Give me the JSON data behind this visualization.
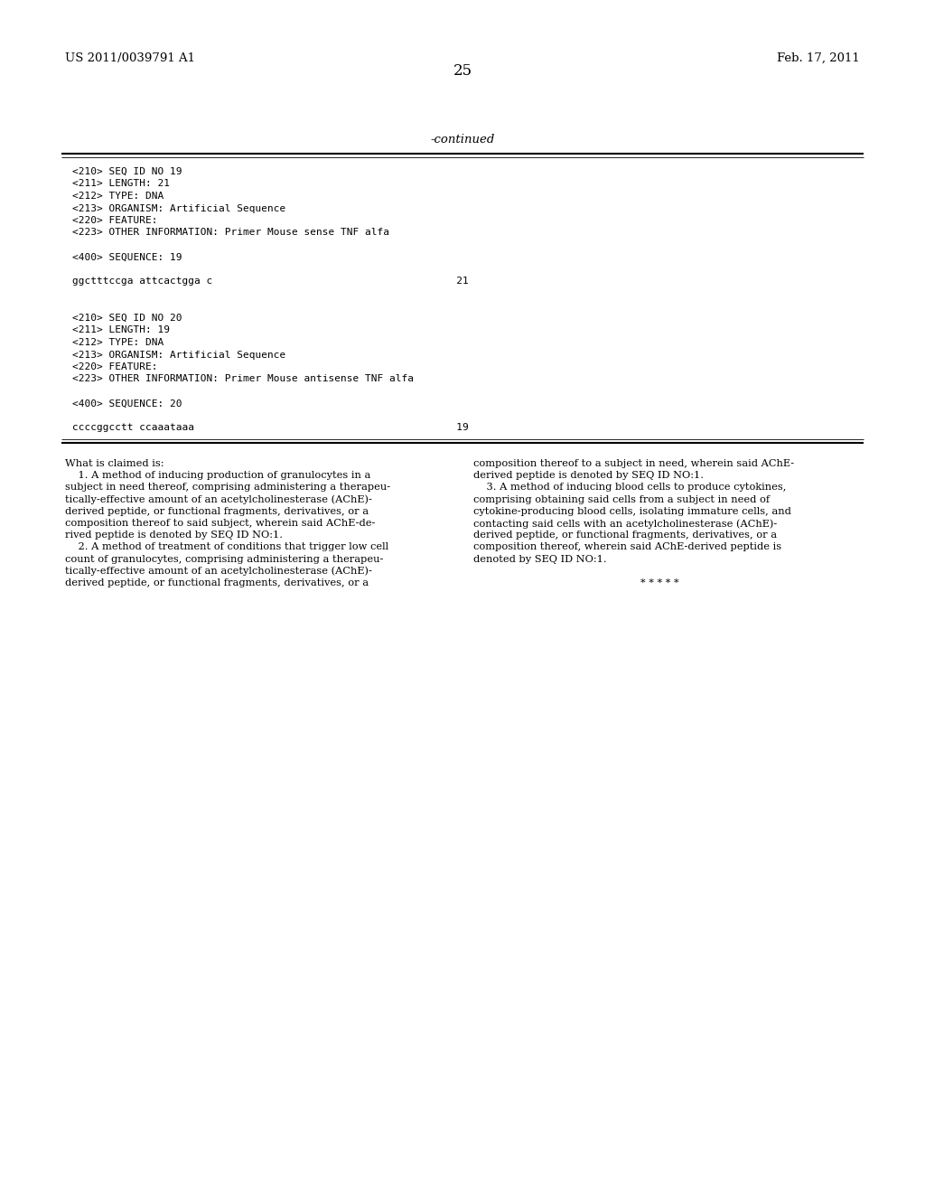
{
  "background_color": "#ffffff",
  "page_number": "25",
  "left_header": "US 2011/0039791 A1",
  "right_header": "Feb. 17, 2011",
  "continued_label": "-continued",
  "monospace_lines": [
    "<210> SEQ ID NO 19",
    "<211> LENGTH: 21",
    "<212> TYPE: DNA",
    "<213> ORGANISM: Artificial Sequence",
    "<220> FEATURE:",
    "<223> OTHER INFORMATION: Primer Mouse sense TNF alfa",
    "",
    "<400> SEQUENCE: 19",
    "",
    "ggctttccga attcactgga c                                        21",
    "",
    "",
    "<210> SEQ ID NO 20",
    "<211> LENGTH: 19",
    "<212> TYPE: DNA",
    "<213> ORGANISM: Artificial Sequence",
    "<220> FEATURE:",
    "<223> OTHER INFORMATION: Primer Mouse antisense TNF alfa",
    "",
    "<400> SEQUENCE: 20",
    "",
    "ccccggcctt ccaaataaa                                           19"
  ],
  "col1_lines": [
    "What is claimed is:",
    "    1. A method of inducing production of granulocytes in a",
    "subject in need thereof, comprising administering a therapeu-",
    "tically-effective amount of an acetylcholinesterase (AChE)-",
    "derived peptide, or functional fragments, derivatives, or a",
    "composition thereof to said subject, wherein said AChE-de-",
    "rived peptide is denoted by SEQ ID NO:1.",
    "    2. A method of treatment of conditions that trigger low cell",
    "count of granulocytes, comprising administering a therapeu-",
    "tically-effective amount of an acetylcholinesterase (AChE)-",
    "derived peptide, or functional fragments, derivatives, or a"
  ],
  "col2_lines": [
    "composition thereof to a subject in need, wherein said AChE-",
    "derived peptide is denoted by SEQ ID NO:1.",
    "    3. A method of inducing blood cells to produce cytokines,",
    "comprising obtaining said cells from a subject in need of",
    "cytokine-producing blood cells, isolating immature cells, and",
    "contacting said cells with an acetylcholinesterase (AChE)-",
    "derived peptide, or functional fragments, derivatives, or a",
    "composition thereof, wherein said AChE-derived peptide is",
    "denoted by SEQ ID NO:1.",
    "",
    "* * * * *"
  ]
}
